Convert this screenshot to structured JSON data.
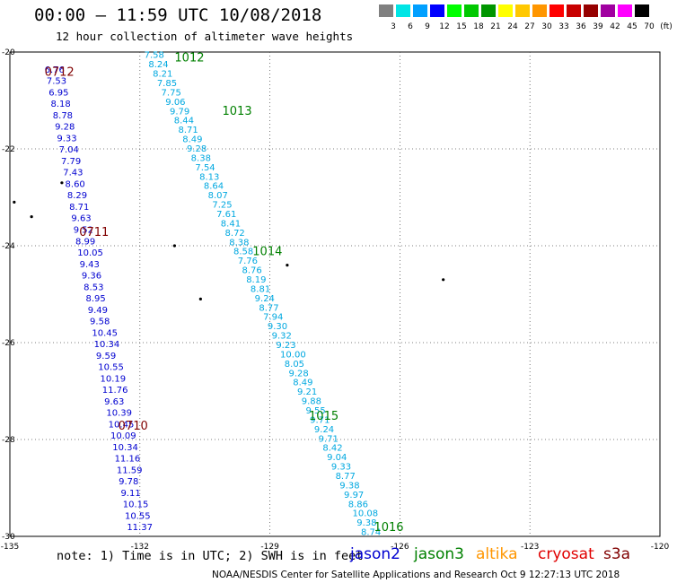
{
  "header": {
    "title": "00:00 – 11:59 UTC 10/08/2018",
    "subtitle": "12 hour collection of altimeter wave heights"
  },
  "color_scale": {
    "unit": "(ft)",
    "labels": [
      "3",
      "6",
      "9",
      "12",
      "15",
      "18",
      "21",
      "24",
      "27",
      "30",
      "33",
      "36",
      "39",
      "42",
      "45",
      "70"
    ],
    "colors": [
      "#808080",
      "#00e5e5",
      "#00a0ff",
      "#0000ff",
      "#00ff00",
      "#00c800",
      "#009600",
      "#ffff00",
      "#ffc800",
      "#ff9600",
      "#ff0000",
      "#c80000",
      "#960000",
      "#a000a0",
      "#ff00ff",
      "#000000"
    ]
  },
  "footer": {
    "note": "note: 1) Time is in UTC; 2) SWH is in feet",
    "credit": "NOAA/NESDIS Center for Satellite Applications and Research   Oct  9 12:27:13 UTC 2018",
    "missions": [
      {
        "name": "jason2",
        "color": "#0000d0"
      },
      {
        "name": "jason3",
        "color": "#008000"
      },
      {
        "name": "altika",
        "color": "#ff9600"
      },
      {
        "name": "cryosat",
        "color": "#e00000"
      },
      {
        "name": "s3a",
        "color": "#800000"
      }
    ]
  },
  "chart_data": {
    "type": "scatter",
    "xlabel": "",
    "ylabel": "",
    "xlim": [
      -135,
      -120
    ],
    "ylim": [
      -30,
      -20
    ],
    "grid": true,
    "x_ticks": [
      "-135",
      "-132",
      "-129",
      "-126",
      "-123",
      "-120"
    ],
    "y_ticks": [
      "-20",
      "-22",
      "-24",
      "-26",
      "-28",
      "-30"
    ],
    "time_labels": [
      {
        "text": "0712",
        "lon": -134.2,
        "lat": -20.4,
        "color": "#800000"
      },
      {
        "text": "0711",
        "lon": -133.4,
        "lat": -23.7,
        "color": "#800000"
      },
      {
        "text": "0710",
        "lon": -132.5,
        "lat": -27.7,
        "color": "#800000"
      },
      {
        "text": "1012",
        "lon": -131.2,
        "lat": -20.1,
        "color": "#008000"
      },
      {
        "text": "1013",
        "lon": -130.1,
        "lat": -21.2,
        "color": "#008000"
      },
      {
        "text": "1014",
        "lon": -129.4,
        "lat": -24.1,
        "color": "#008000"
      },
      {
        "text": "1015",
        "lon": -128.1,
        "lat": -27.5,
        "color": "#008000"
      },
      {
        "text": "1016",
        "lon": -126.6,
        "lat": -29.8,
        "color": "#008000"
      }
    ],
    "series": [
      {
        "name": "0710-0712",
        "color": "#0000d0",
        "lon_start": -134.2,
        "lon_end": -132.3,
        "lat_start": -20.35,
        "lat_end": -29.8,
        "values": [
          "6.76",
          "7.53",
          "6.95",
          "8.18",
          "8.78",
          "9.28",
          "9.33",
          "7.04",
          "7.79",
          "7.43",
          "8.60",
          "8.29",
          "8.71",
          "9.63",
          "9.52",
          "8.99",
          "10.05",
          "9.43",
          "9.36",
          "8.53",
          "8.95",
          "9.49",
          "9.58",
          "10.45",
          "10.34",
          "9.59",
          "10.55",
          "10.19",
          "11.76",
          "9.63",
          "10.39",
          "10.45",
          "10.09",
          "10.34",
          "11.16",
          "11.59",
          "9.78",
          "9.11",
          "10.15",
          "10.55",
          "11.37"
        ]
      },
      {
        "name": "1012-1016",
        "color": "#00a8e0",
        "lon_start": -131.9,
        "lon_end": -126.9,
        "lat_start": -20.05,
        "lat_end": -29.9,
        "values": [
          "7.58",
          "8.24",
          "8.21",
          "7.85",
          "7.75",
          "9.06",
          "9.79",
          "8.44",
          "8.71",
          "8.49",
          "9.28",
          "8.38",
          "7.54",
          "8.13",
          "8.64",
          "8.07",
          "7.25",
          "7.61",
          "8.41",
          "8.72",
          "8.38",
          "8.58",
          "7.76",
          "8.76",
          "8.19",
          "8.81",
          "9.24",
          "8.77",
          "7.94",
          "9.30",
          "9.32",
          "9.23",
          "10.00",
          "8.05",
          "9.28",
          "8.49",
          "9.21",
          "9.88",
          "9.55",
          "9.71",
          "9.24",
          "9.71",
          "8.42",
          "9.04",
          "9.33",
          "8.77",
          "9.38",
          "9.97",
          "8.86",
          "10.08",
          "9.38",
          "8.74"
        ]
      }
    ],
    "islands": [
      {
        "lon": -133.8,
        "lat": -22.7
      },
      {
        "lon": -134.9,
        "lat": -23.1
      },
      {
        "lon": -134.5,
        "lat": -23.4
      },
      {
        "lon": -131.2,
        "lat": -24.0
      },
      {
        "lon": -128.6,
        "lat": -24.4
      },
      {
        "lon": -125.0,
        "lat": -24.7
      },
      {
        "lon": -130.6,
        "lat": -25.1
      }
    ]
  }
}
